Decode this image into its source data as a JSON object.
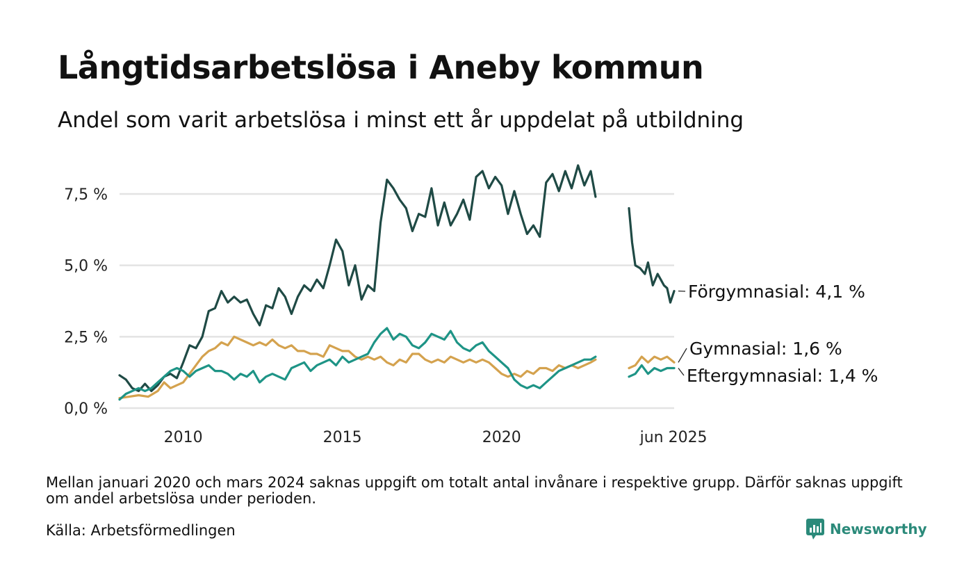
{
  "header": {
    "title": "Långtidsarbetslösa i Aneby kommun",
    "subtitle": "Andel som varit arbetslösa i minst ett år uppdelat på utbildning"
  },
  "footer": {
    "note": "Mellan januari 2020 och mars 2024 saknas uppgift om totalt antal invånare i respektive grupp. Därför saknas uppgift om andel arbetslösa under perioden.",
    "source": "Källa: Arbetsförmedlingen",
    "brand": "Newsworthy"
  },
  "colors": {
    "forgymnasial": "#1f4a45",
    "gymnasial": "#d4a24e",
    "eftergymnasial": "#1e9486",
    "grid": "#e3e3e3",
    "brand": "#2b8a7a"
  },
  "chart_data": {
    "type": "line",
    "x_unit": "decimal year",
    "ylim": [
      0,
      9
    ],
    "yticks": [
      {
        "value": 0,
        "label": "0,0 %"
      },
      {
        "value": 2.5,
        "label": "2,5 %"
      },
      {
        "value": 5,
        "label": "5,0 %"
      },
      {
        "value": 7.5,
        "label": "7,5 %"
      }
    ],
    "xticks": [
      {
        "value": 2010,
        "label": "2010"
      },
      {
        "value": 2015,
        "label": "2015"
      },
      {
        "value": 2020,
        "label": "2020"
      },
      {
        "value": 2025.4,
        "label": "jun 2025"
      }
    ],
    "xlim": [
      2008.0,
      2025.42
    ],
    "grid": true,
    "series": [
      {
        "key": "forgymnasial",
        "end_label": "Förgymnasial: 4,1 %",
        "segments": [
          [
            [
              2008.0,
              1.15
            ],
            [
              2008.2,
              1.0
            ],
            [
              2008.4,
              0.7
            ],
            [
              2008.6,
              0.6
            ],
            [
              2008.8,
              0.85
            ],
            [
              2009.0,
              0.6
            ],
            [
              2009.2,
              0.8
            ],
            [
              2009.4,
              1.1
            ],
            [
              2009.6,
              1.2
            ],
            [
              2009.8,
              1.05
            ],
            [
              2010.0,
              1.6
            ],
            [
              2010.2,
              2.2
            ],
            [
              2010.4,
              2.1
            ],
            [
              2010.6,
              2.5
            ],
            [
              2010.8,
              3.4
            ],
            [
              2011.0,
              3.5
            ],
            [
              2011.2,
              4.1
            ],
            [
              2011.4,
              3.7
            ],
            [
              2011.6,
              3.9
            ],
            [
              2011.8,
              3.7
            ],
            [
              2012.0,
              3.8
            ],
            [
              2012.2,
              3.3
            ],
            [
              2012.4,
              2.9
            ],
            [
              2012.6,
              3.6
            ],
            [
              2012.8,
              3.5
            ],
            [
              2013.0,
              4.2
            ],
            [
              2013.2,
              3.9
            ],
            [
              2013.4,
              3.3
            ],
            [
              2013.6,
              3.9
            ],
            [
              2013.8,
              4.3
            ],
            [
              2014.0,
              4.1
            ],
            [
              2014.2,
              4.5
            ],
            [
              2014.4,
              4.2
            ],
            [
              2014.6,
              5.0
            ],
            [
              2014.8,
              5.9
            ],
            [
              2015.0,
              5.5
            ],
            [
              2015.2,
              4.3
            ],
            [
              2015.4,
              5.0
            ],
            [
              2015.6,
              3.8
            ],
            [
              2015.8,
              4.3
            ],
            [
              2016.0,
              4.1
            ],
            [
              2016.2,
              6.5
            ],
            [
              2016.4,
              8.0
            ],
            [
              2016.6,
              7.7
            ],
            [
              2016.8,
              7.3
            ],
            [
              2017.0,
              7.0
            ],
            [
              2017.2,
              6.2
            ],
            [
              2017.4,
              6.8
            ],
            [
              2017.6,
              6.7
            ],
            [
              2017.8,
              7.7
            ],
            [
              2018.0,
              6.4
            ],
            [
              2018.2,
              7.2
            ],
            [
              2018.4,
              6.4
            ],
            [
              2018.6,
              6.8
            ],
            [
              2018.8,
              7.3
            ],
            [
              2019.0,
              6.6
            ],
            [
              2019.2,
              8.1
            ],
            [
              2019.4,
              8.3
            ],
            [
              2019.6,
              7.7
            ],
            [
              2019.8,
              8.1
            ],
            [
              2020.0,
              7.8
            ],
            [
              2020.2,
              6.8
            ],
            [
              2020.4,
              7.6
            ],
            [
              2020.6,
              6.8
            ],
            [
              2020.8,
              6.1
            ],
            [
              2021.0,
              6.4
            ],
            [
              2021.2,
              6.0
            ],
            [
              2021.4,
              7.9
            ],
            [
              2021.6,
              8.2
            ],
            [
              2021.8,
              7.6
            ],
            [
              2022.0,
              8.3
            ],
            [
              2022.2,
              7.7
            ],
            [
              2022.4,
              8.5
            ],
            [
              2022.6,
              7.8
            ],
            [
              2022.8,
              8.3
            ],
            [
              2022.95,
              7.4
            ]
          ],
          [
            [
              2024.0,
              7.0
            ],
            [
              2024.1,
              5.8
            ],
            [
              2024.2,
              5.0
            ],
            [
              2024.35,
              4.9
            ],
            [
              2024.5,
              4.7
            ],
            [
              2024.6,
              5.1
            ],
            [
              2024.75,
              4.3
            ],
            [
              2024.9,
              4.7
            ],
            [
              2025.0,
              4.5
            ],
            [
              2025.1,
              4.3
            ],
            [
              2025.2,
              4.2
            ],
            [
              2025.3,
              3.7
            ],
            [
              2025.42,
              4.1
            ]
          ]
        ]
      },
      {
        "key": "gymnasial",
        "end_label": "Gymnasial: 1,6 %",
        "segments": [
          [
            [
              2008.0,
              0.35
            ],
            [
              2008.3,
              0.4
            ],
            [
              2008.6,
              0.45
            ],
            [
              2008.9,
              0.4
            ],
            [
              2009.2,
              0.6
            ],
            [
              2009.4,
              0.9
            ],
            [
              2009.6,
              0.7
            ],
            [
              2009.8,
              0.8
            ],
            [
              2010.0,
              0.9
            ],
            [
              2010.2,
              1.2
            ],
            [
              2010.4,
              1.5
            ],
            [
              2010.6,
              1.8
            ],
            [
              2010.8,
              2.0
            ],
            [
              2011.0,
              2.1
            ],
            [
              2011.2,
              2.3
            ],
            [
              2011.4,
              2.2
            ],
            [
              2011.6,
              2.5
            ],
            [
              2011.8,
              2.4
            ],
            [
              2012.0,
              2.3
            ],
            [
              2012.2,
              2.2
            ],
            [
              2012.4,
              2.3
            ],
            [
              2012.6,
              2.2
            ],
            [
              2012.8,
              2.4
            ],
            [
              2013.0,
              2.2
            ],
            [
              2013.2,
              2.1
            ],
            [
              2013.4,
              2.2
            ],
            [
              2013.6,
              2.0
            ],
            [
              2013.8,
              2.0
            ],
            [
              2014.0,
              1.9
            ],
            [
              2014.2,
              1.9
            ],
            [
              2014.4,
              1.8
            ],
            [
              2014.6,
              2.2
            ],
            [
              2014.8,
              2.1
            ],
            [
              2015.0,
              2.0
            ],
            [
              2015.2,
              2.0
            ],
            [
              2015.4,
              1.8
            ],
            [
              2015.6,
              1.7
            ],
            [
              2015.8,
              1.8
            ],
            [
              2016.0,
              1.7
            ],
            [
              2016.2,
              1.8
            ],
            [
              2016.4,
              1.6
            ],
            [
              2016.6,
              1.5
            ],
            [
              2016.8,
              1.7
            ],
            [
              2017.0,
              1.6
            ],
            [
              2017.2,
              1.9
            ],
            [
              2017.4,
              1.9
            ],
            [
              2017.6,
              1.7
            ],
            [
              2017.8,
              1.6
            ],
            [
              2018.0,
              1.7
            ],
            [
              2018.2,
              1.6
            ],
            [
              2018.4,
              1.8
            ],
            [
              2018.6,
              1.7
            ],
            [
              2018.8,
              1.6
            ],
            [
              2019.0,
              1.7
            ],
            [
              2019.2,
              1.6
            ],
            [
              2019.4,
              1.7
            ],
            [
              2019.6,
              1.6
            ],
            [
              2019.8,
              1.4
            ],
            [
              2020.0,
              1.2
            ],
            [
              2020.2,
              1.1
            ],
            [
              2020.4,
              1.2
            ],
            [
              2020.6,
              1.1
            ],
            [
              2020.8,
              1.3
            ],
            [
              2021.0,
              1.2
            ],
            [
              2021.2,
              1.4
            ],
            [
              2021.4,
              1.4
            ],
            [
              2021.6,
              1.3
            ],
            [
              2021.8,
              1.5
            ],
            [
              2022.0,
              1.4
            ],
            [
              2022.2,
              1.5
            ],
            [
              2022.4,
              1.4
            ],
            [
              2022.6,
              1.5
            ],
            [
              2022.8,
              1.6
            ],
            [
              2022.95,
              1.7
            ]
          ],
          [
            [
              2024.0,
              1.4
            ],
            [
              2024.2,
              1.5
            ],
            [
              2024.4,
              1.8
            ],
            [
              2024.6,
              1.6
            ],
            [
              2024.8,
              1.8
            ],
            [
              2025.0,
              1.7
            ],
            [
              2025.2,
              1.8
            ],
            [
              2025.42,
              1.6
            ]
          ]
        ]
      },
      {
        "key": "eftergymnasial",
        "end_label": "Eftergymnasial: 1,4 %",
        "segments": [
          [
            [
              2008.0,
              0.3
            ],
            [
              2008.2,
              0.5
            ],
            [
              2008.4,
              0.6
            ],
            [
              2008.6,
              0.7
            ],
            [
              2008.8,
              0.6
            ],
            [
              2009.0,
              0.7
            ],
            [
              2009.2,
              0.9
            ],
            [
              2009.4,
              1.1
            ],
            [
              2009.6,
              1.3
            ],
            [
              2009.8,
              1.4
            ],
            [
              2010.0,
              1.3
            ],
            [
              2010.2,
              1.1
            ],
            [
              2010.4,
              1.3
            ],
            [
              2010.6,
              1.4
            ],
            [
              2010.8,
              1.5
            ],
            [
              2011.0,
              1.3
            ],
            [
              2011.2,
              1.3
            ],
            [
              2011.4,
              1.2
            ],
            [
              2011.6,
              1.0
            ],
            [
              2011.8,
              1.2
            ],
            [
              2012.0,
              1.1
            ],
            [
              2012.2,
              1.3
            ],
            [
              2012.4,
              0.9
            ],
            [
              2012.6,
              1.1
            ],
            [
              2012.8,
              1.2
            ],
            [
              2013.0,
              1.1
            ],
            [
              2013.2,
              1.0
            ],
            [
              2013.4,
              1.4
            ],
            [
              2013.6,
              1.5
            ],
            [
              2013.8,
              1.6
            ],
            [
              2014.0,
              1.3
            ],
            [
              2014.2,
              1.5
            ],
            [
              2014.4,
              1.6
            ],
            [
              2014.6,
              1.7
            ],
            [
              2014.8,
              1.5
            ],
            [
              2015.0,
              1.8
            ],
            [
              2015.2,
              1.6
            ],
            [
              2015.4,
              1.7
            ],
            [
              2015.6,
              1.8
            ],
            [
              2015.8,
              1.9
            ],
            [
              2016.0,
              2.3
            ],
            [
              2016.2,
              2.6
            ],
            [
              2016.4,
              2.8
            ],
            [
              2016.6,
              2.4
            ],
            [
              2016.8,
              2.6
            ],
            [
              2017.0,
              2.5
            ],
            [
              2017.2,
              2.2
            ],
            [
              2017.4,
              2.1
            ],
            [
              2017.6,
              2.3
            ],
            [
              2017.8,
              2.6
            ],
            [
              2018.0,
              2.5
            ],
            [
              2018.2,
              2.4
            ],
            [
              2018.4,
              2.7
            ],
            [
              2018.6,
              2.3
            ],
            [
              2018.8,
              2.1
            ],
            [
              2019.0,
              2.0
            ],
            [
              2019.2,
              2.2
            ],
            [
              2019.4,
              2.3
            ],
            [
              2019.6,
              2.0
            ],
            [
              2019.8,
              1.8
            ],
            [
              2020.0,
              1.6
            ],
            [
              2020.2,
              1.4
            ],
            [
              2020.4,
              1.0
            ],
            [
              2020.6,
              0.8
            ],
            [
              2020.8,
              0.7
            ],
            [
              2021.0,
              0.8
            ],
            [
              2021.2,
              0.7
            ],
            [
              2021.4,
              0.9
            ],
            [
              2021.6,
              1.1
            ],
            [
              2021.8,
              1.3
            ],
            [
              2022.0,
              1.4
            ],
            [
              2022.2,
              1.5
            ],
            [
              2022.4,
              1.6
            ],
            [
              2022.6,
              1.7
            ],
            [
              2022.8,
              1.7
            ],
            [
              2022.95,
              1.8
            ]
          ],
          [
            [
              2024.0,
              1.1
            ],
            [
              2024.2,
              1.2
            ],
            [
              2024.4,
              1.5
            ],
            [
              2024.6,
              1.2
            ],
            [
              2024.8,
              1.4
            ],
            [
              2025.0,
              1.3
            ],
            [
              2025.2,
              1.4
            ],
            [
              2025.42,
              1.4
            ]
          ]
        ]
      }
    ]
  }
}
